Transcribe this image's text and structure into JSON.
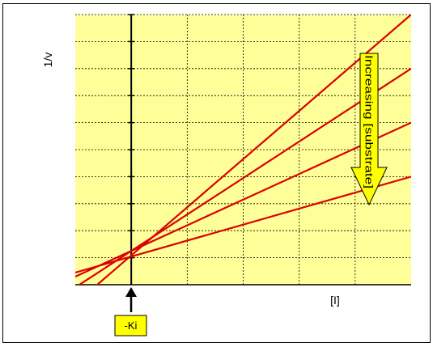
{
  "chart_data": {
    "type": "line",
    "title": "",
    "xlabel": "[I]",
    "ylabel": "1/v",
    "xlim": [
      -1,
      5
    ],
    "ylim": [
      0,
      10
    ],
    "grid": true,
    "series": [
      {
        "x": [
          -1,
          5
        ],
        "y": [
          -0.7,
          10.0
        ]
      },
      {
        "x": [
          -1,
          5
        ],
        "y": [
          -0.1,
          8.0
        ]
      },
      {
        "x": [
          -1,
          5
        ],
        "y": [
          0.3,
          6.0
        ]
      },
      {
        "x": [
          -1,
          5
        ],
        "y": [
          0.45,
          4.0
        ]
      }
    ],
    "annotations": {
      "ki_label": "-Ki",
      "arrow_label": "Increasing [substrate]"
    },
    "colors": {
      "plot_background": "#ffff99",
      "line": "#dd0000",
      "arrow_fill": "#ffff00",
      "ki_box": "#ffff00"
    }
  }
}
